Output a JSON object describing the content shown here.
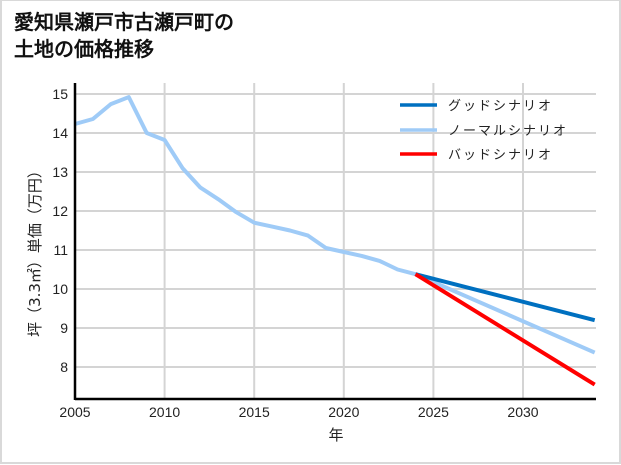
{
  "title": {
    "line1": "愛知県瀬戸市古瀬戸町の",
    "line2": "土地の価格推移"
  },
  "colors": {
    "good": "#0070c0",
    "normal": "#9fcbf7",
    "bad": "#ff0000",
    "grid": "#d4d4d4",
    "axis": "#000000"
  },
  "chart_data": {
    "type": "line",
    "title": "愛知県瀬戸市古瀬戸町の土地の価格推移",
    "xlabel": "年",
    "ylabel": "坪（3.3㎡）単価（万円）",
    "xlim": [
      2005,
      2034
    ],
    "ylim": [
      7.2,
      15.3
    ],
    "grid": true,
    "legend_position": "upper right",
    "x_ticks": [
      "2005",
      "2010",
      "2015",
      "2020",
      "2025",
      "2030"
    ],
    "y_ticks": [
      "8",
      "9",
      "10",
      "11",
      "12",
      "13",
      "14",
      "15"
    ],
    "series": [
      {
        "name": "ノーマルシナリオ",
        "key": "normal",
        "x": [
          2005,
          2006,
          2007,
          2008,
          2009,
          2010,
          2011,
          2012,
          2013,
          2014,
          2015,
          2016,
          2017,
          2018,
          2019,
          2020,
          2021,
          2022,
          2023,
          2024,
          2034
        ],
        "values": [
          14.23,
          14.36,
          14.74,
          14.92,
          14.0,
          13.82,
          13.1,
          12.6,
          12.3,
          11.97,
          11.7,
          11.6,
          11.5,
          11.37,
          11.05,
          10.95,
          10.85,
          10.72,
          10.5,
          10.38,
          8.37
        ]
      },
      {
        "name": "グッドシナリオ",
        "key": "good",
        "x": [
          2024,
          2034
        ],
        "values": [
          10.38,
          9.2
        ]
      },
      {
        "name": "バッドシナリオ",
        "key": "bad",
        "x": [
          2024,
          2034
        ],
        "values": [
          10.38,
          7.55
        ]
      }
    ]
  },
  "legend": [
    {
      "label": "グッドシナリオ",
      "key": "good"
    },
    {
      "label": "ノーマルシナリオ",
      "key": "normal"
    },
    {
      "label": "バッドシナリオ",
      "key": "bad"
    }
  ]
}
